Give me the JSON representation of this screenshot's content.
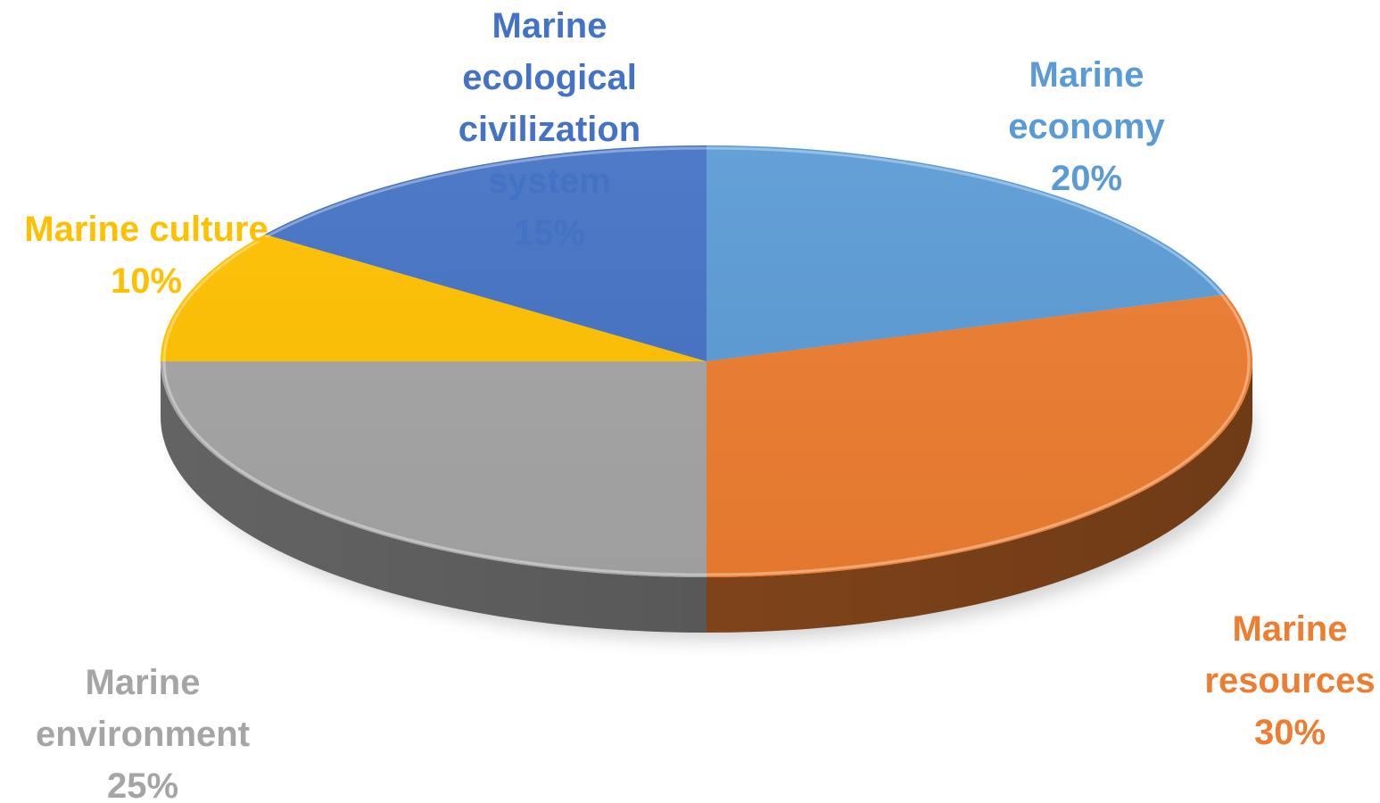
{
  "chart_data": {
    "type": "pie",
    "style": "3d",
    "slices": [
      {
        "label_lines": [
          "Marine",
          "economy"
        ],
        "value": 20,
        "value_label": "20%",
        "color": "#5B9BD5"
      },
      {
        "label_lines": [
          "Marine",
          "resources"
        ],
        "value": 30,
        "value_label": "30%",
        "color": "#ED7D31"
      },
      {
        "label_lines": [
          "Marine",
          "environment"
        ],
        "value": 25,
        "value_label": "25%",
        "color": "#A5A5A5"
      },
      {
        "label_lines": [
          "Marine culture"
        ],
        "value": 10,
        "value_label": "10%",
        "color": "#FFC000"
      },
      {
        "label_lines": [
          "Marine",
          "ecological",
          "civilization",
          "system"
        ],
        "value": 15,
        "value_label": "15%",
        "color": "#4472C4"
      }
    ],
    "legend": "none"
  }
}
